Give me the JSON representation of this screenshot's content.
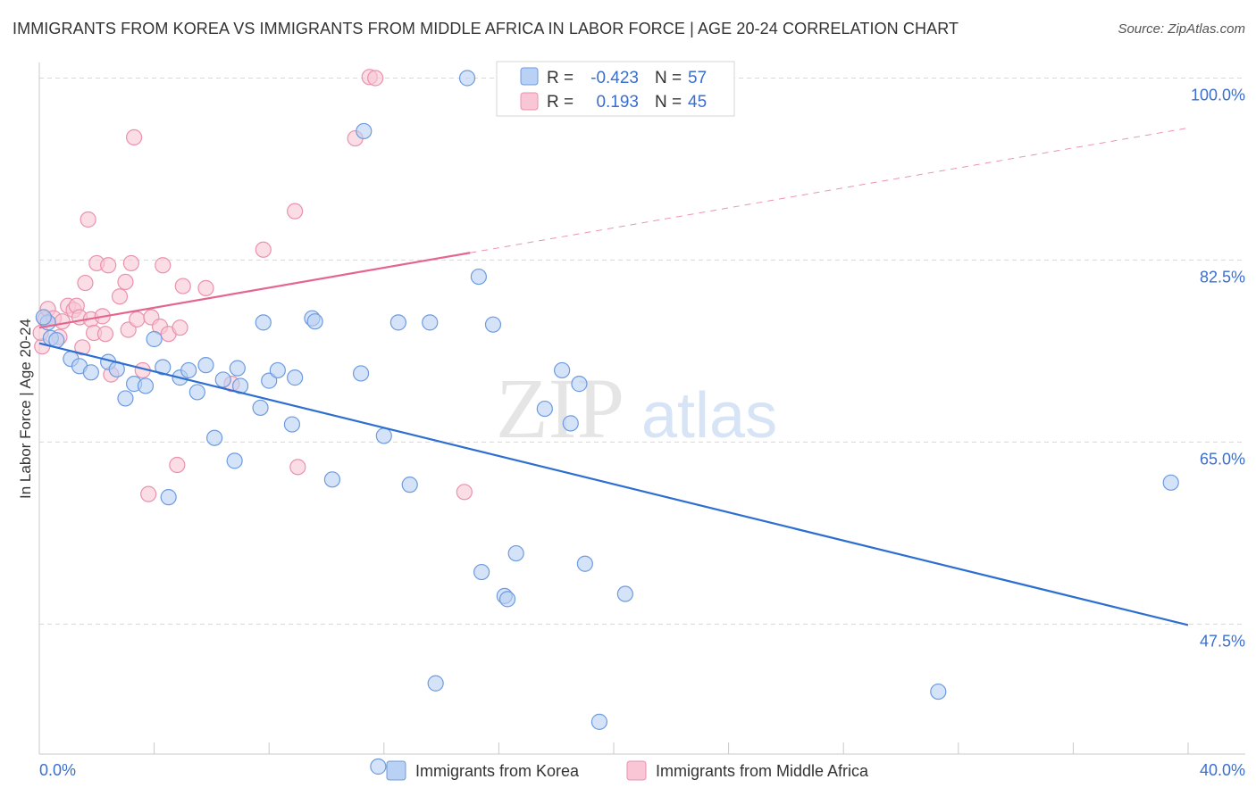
{
  "title": "IMMIGRANTS FROM KOREA VS IMMIGRANTS FROM MIDDLE AFRICA IN LABOR FORCE | AGE 20-24 CORRELATION CHART",
  "source": "Source: ZipAtlas.com",
  "watermark": {
    "zip": "ZIP",
    "atlas": "atlas"
  },
  "colors": {
    "korea_fill": "#b9d1f4",
    "korea_stroke": "#6d9be0",
    "korea_line": "#2c6fd0",
    "africa_fill": "#f9c6d5",
    "africa_stroke": "#ea92ad",
    "africa_line": "#e4668f",
    "tick_label": "#3a6fcf",
    "grid": "#d8d8d8"
  },
  "legend": {
    "rows": [
      {
        "r_label": "R =",
        "r_value": "-0.423",
        "n_label": "N =",
        "n_value": "57"
      },
      {
        "r_label": "R =",
        "r_value": "0.193",
        "n_label": "N =",
        "n_value": "45"
      }
    ]
  },
  "chart_data": {
    "type": "scatter",
    "title": "IMMIGRANTS FROM KOREA VS IMMIGRANTS FROM MIDDLE AFRICA IN LABOR FORCE | AGE 20-24 CORRELATION CHART",
    "xlabel": "",
    "ylabel": "In Labor Force | Age 20-24",
    "xlim": [
      0,
      40
    ],
    "ylim": [
      35,
      101.5
    ],
    "x_tick_labels": [
      "0.0%",
      "40.0%"
    ],
    "y_ticks": [
      47.5,
      65.0,
      82.5,
      100.0
    ],
    "y_tick_labels": [
      "47.5%",
      "65.0%",
      "82.5%",
      "100.0%"
    ],
    "grid": true,
    "legend_position": "bottom",
    "series": [
      {
        "name": "Immigrants from Korea",
        "r": -0.423,
        "n": 57,
        "trend": {
          "x": [
            0,
            40
          ],
          "y": [
            74.5,
            47.4
          ],
          "dashed_extension": false
        },
        "points": [
          [
            0.3,
            76.5
          ],
          [
            0.4,
            75.0
          ],
          [
            0.6,
            74.8
          ],
          [
            1.1,
            73.0
          ],
          [
            1.4,
            72.3
          ],
          [
            1.8,
            71.7
          ],
          [
            2.4,
            72.7
          ],
          [
            2.7,
            72.0
          ],
          [
            3.0,
            69.2
          ],
          [
            3.3,
            70.6
          ],
          [
            3.7,
            70.4
          ],
          [
            4.0,
            74.9
          ],
          [
            4.3,
            72.2
          ],
          [
            4.5,
            59.7
          ],
          [
            4.9,
            71.2
          ],
          [
            5.2,
            71.9
          ],
          [
            5.5,
            69.8
          ],
          [
            5.8,
            72.4
          ],
          [
            6.1,
            65.4
          ],
          [
            6.4,
            71.0
          ],
          [
            6.8,
            63.2
          ],
          [
            6.9,
            72.1
          ],
          [
            7.0,
            70.4
          ],
          [
            7.7,
            68.3
          ],
          [
            7.8,
            76.5
          ],
          [
            8.0,
            70.9
          ],
          [
            8.3,
            71.9
          ],
          [
            8.8,
            66.7
          ],
          [
            8.9,
            71.2
          ],
          [
            9.5,
            76.9
          ],
          [
            9.6,
            76.6
          ],
          [
            10.2,
            61.4
          ],
          [
            11.2,
            71.6
          ],
          [
            11.3,
            94.9
          ],
          [
            11.8,
            33.8
          ],
          [
            12.0,
            65.6
          ],
          [
            12.5,
            76.5
          ],
          [
            12.9,
            60.9
          ],
          [
            13.6,
            76.5
          ],
          [
            13.8,
            41.8
          ],
          [
            14.9,
            100.0
          ],
          [
            15.3,
            80.9
          ],
          [
            15.4,
            52.5
          ],
          [
            15.8,
            76.3
          ],
          [
            16.2,
            50.2
          ],
          [
            16.3,
            49.9
          ],
          [
            16.6,
            54.3
          ],
          [
            17.6,
            68.2
          ],
          [
            18.2,
            71.9
          ],
          [
            18.5,
            66.8
          ],
          [
            18.8,
            70.6
          ],
          [
            19.0,
            53.3
          ],
          [
            19.5,
            38.1
          ],
          [
            20.4,
            50.4
          ],
          [
            31.3,
            41.0
          ],
          [
            39.4,
            61.1
          ],
          [
            0.15,
            77.0
          ]
        ]
      },
      {
        "name": "Immigrants from Middle Africa",
        "r": 0.193,
        "n": 45,
        "trend": {
          "x": [
            0,
            15.0,
            40
          ],
          "y": [
            76.0,
            83.2,
            95.2
          ],
          "dashed_extension": true
        },
        "points": [
          [
            0.1,
            74.2
          ],
          [
            0.2,
            76.8
          ],
          [
            0.3,
            77.8
          ],
          [
            0.5,
            76.9
          ],
          [
            0.7,
            75.1
          ],
          [
            0.8,
            76.6
          ],
          [
            1.0,
            78.1
          ],
          [
            1.2,
            77.7
          ],
          [
            1.3,
            78.1
          ],
          [
            1.4,
            77.0
          ],
          [
            1.5,
            74.1
          ],
          [
            1.6,
            80.3
          ],
          [
            1.7,
            86.4
          ],
          [
            1.8,
            76.8
          ],
          [
            1.9,
            75.5
          ],
          [
            2.0,
            82.2
          ],
          [
            2.2,
            77.1
          ],
          [
            2.3,
            75.4
          ],
          [
            2.4,
            82.0
          ],
          [
            2.5,
            71.5
          ],
          [
            2.8,
            79.0
          ],
          [
            3.0,
            80.4
          ],
          [
            3.1,
            75.8
          ],
          [
            3.2,
            82.2
          ],
          [
            3.3,
            94.3
          ],
          [
            3.4,
            76.8
          ],
          [
            3.6,
            71.9
          ],
          [
            3.8,
            60.0
          ],
          [
            3.9,
            77.0
          ],
          [
            4.2,
            76.1
          ],
          [
            4.3,
            82.0
          ],
          [
            4.5,
            75.4
          ],
          [
            4.8,
            62.8
          ],
          [
            4.9,
            76.0
          ],
          [
            5.0,
            80.0
          ],
          [
            5.8,
            79.8
          ],
          [
            6.7,
            70.6
          ],
          [
            7.8,
            83.5
          ],
          [
            8.9,
            87.2
          ],
          [
            9.0,
            62.6
          ],
          [
            11.0,
            94.2
          ],
          [
            11.5,
            100.1
          ],
          [
            11.7,
            100.0
          ],
          [
            14.8,
            60.2
          ],
          [
            0.05,
            75.5
          ]
        ]
      }
    ]
  }
}
